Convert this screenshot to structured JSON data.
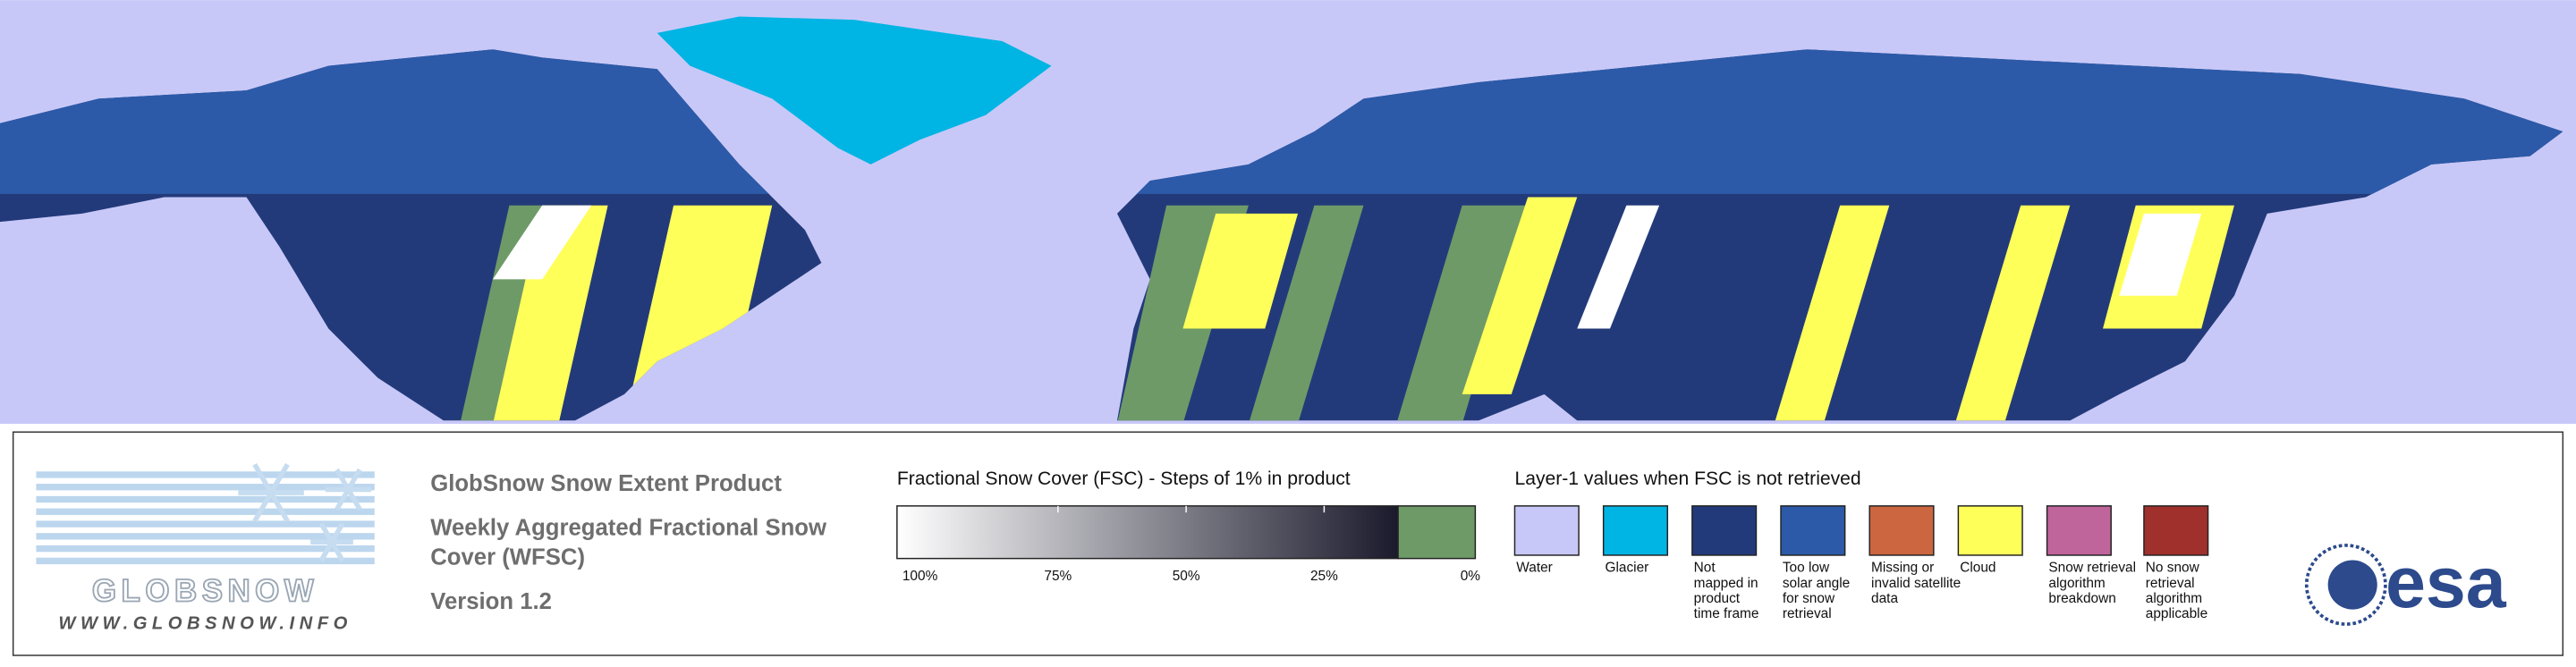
{
  "map": {
    "land_color": "#233a7a",
    "water_color": "#c8c8f8"
  },
  "legend": {
    "logo": {
      "name": "GLOBSNOW",
      "url": "WWW.GLOBSNOW.INFO"
    },
    "product": {
      "title": "GlobSnow Snow Extent Product",
      "subtitle_lines": [
        "Weekly Aggregated Fractional Snow",
        "Cover (WFSC)"
      ],
      "version": "Version 1.2"
    },
    "fsc_scale": {
      "title": "Fractional Snow Cover (FSC) - Steps of 1% in product",
      "ticks": [
        "100%",
        "75%",
        "50%",
        "25%",
        "0%"
      ],
      "start_color": "#ffffff",
      "end_color": "#1a1a2c",
      "zero_color": "#6e9a68"
    },
    "layer1": {
      "title": "Layer-1 values when FSC is not retrieved",
      "classes": [
        {
          "color": "#c8c8f8",
          "lines": [
            "Water"
          ]
        },
        {
          "color": "#00b4e4",
          "lines": [
            "Glacier"
          ]
        },
        {
          "color": "#233a7a",
          "lines": [
            "Not",
            "mapped in",
            "product",
            "time frame"
          ]
        },
        {
          "color": "#2c5aa8",
          "lines": [
            "Too low",
            "solar angle",
            "for snow",
            "retrieval"
          ]
        },
        {
          "color": "#cc6640",
          "lines": [
            "Missing or",
            "invalid satellite",
            "data"
          ]
        },
        {
          "color": "#ffff5a",
          "lines": [
            "Cloud"
          ]
        },
        {
          "color": "#c0649c",
          "lines": [
            "Snow retrieval",
            "algorithm",
            "breakdown"
          ]
        },
        {
          "color": "#a0302c",
          "lines": [
            "No snow",
            "retrieval",
            "algorithm",
            "applicable"
          ]
        }
      ]
    },
    "esa_logo": "esa"
  }
}
